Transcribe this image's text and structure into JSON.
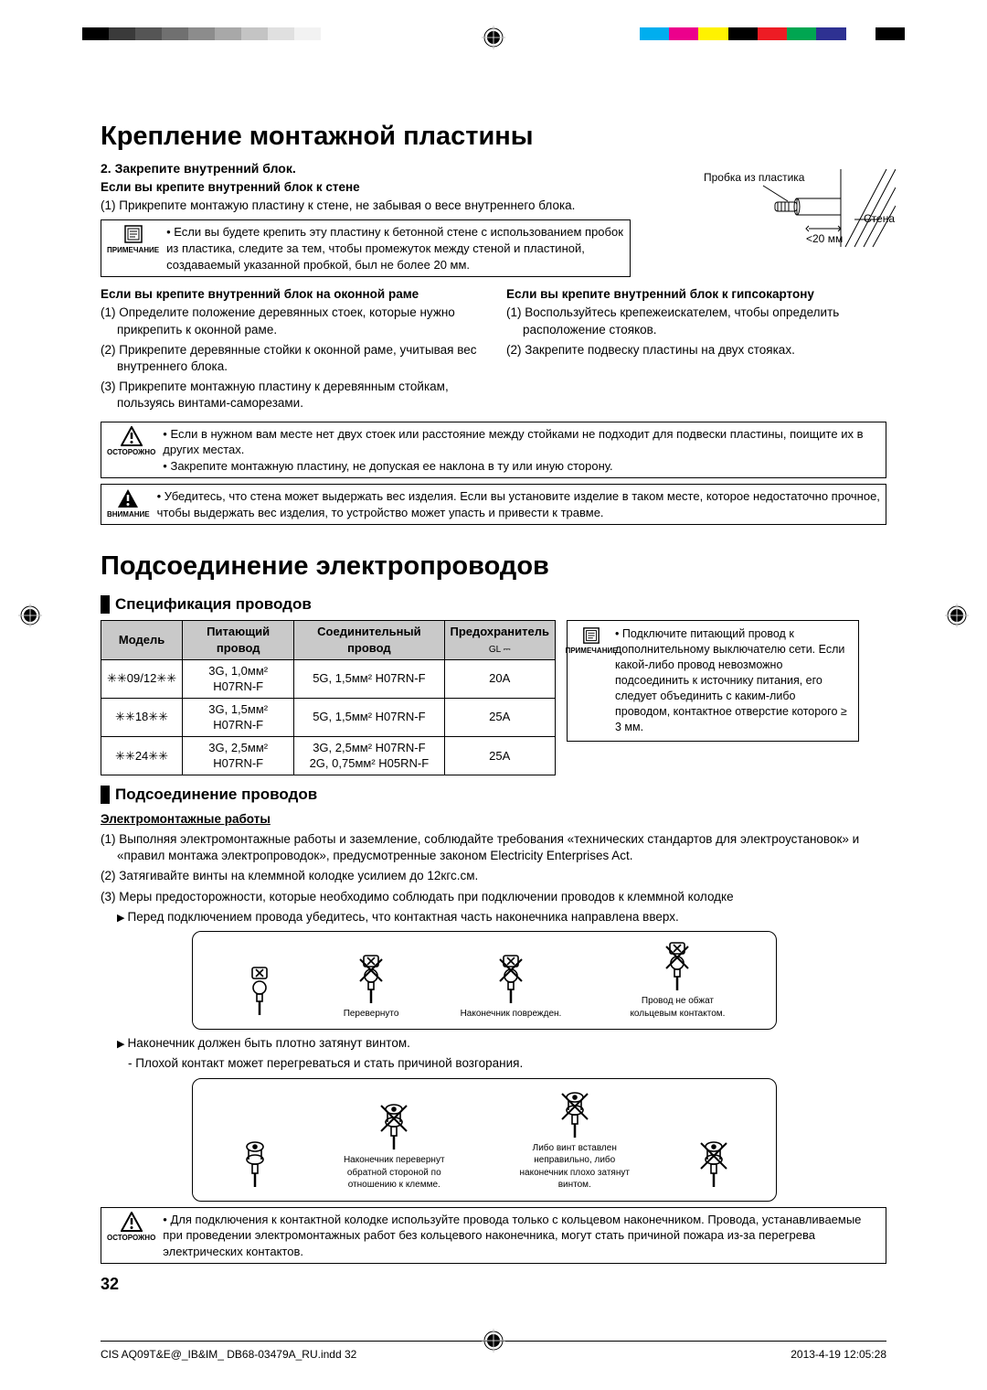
{
  "color_bars": {
    "left": [
      "#000000",
      "#3a3a3a",
      "#555555",
      "#707070",
      "#8c8c8c",
      "#a8a8a8",
      "#c4c4c4",
      "#e0e0e0",
      "#f2f2f2",
      "#ffffff"
    ],
    "right": [
      "#00aeef",
      "#ec008c",
      "#fff200",
      "#000000",
      "#ed1c24",
      "#00a651",
      "#2e3192",
      "#ffffff",
      "#000000"
    ]
  },
  "sec1": {
    "title": "Крепление монтажной пластины",
    "step": "2.  Закрепите внутренний блок.",
    "case_wall_h": "Если вы крепите внутренний блок к стене",
    "case_wall_1": "(1) Прикрепите монтажую пластину к стене, не забывая о весе внутреннего блока.",
    "note1_label": "ПРИМЕЧАНИЕ",
    "note1": "Если вы будете крепить эту пластину к бетонной стене с использованием пробок из пластика, следите за тем, чтобы промежуток между стеной и пластиной, создаваемый указанной пробкой, был не более 20 мм.",
    "case_frame_h": "Если вы крепите внутренний блок на оконной раме",
    "case_frame_1": "(1) Определите положение деревянных стоек, которые нужно прикрепить к оконной раме.",
    "case_frame_2": "(2) Прикрепите деревянные стойки к оконной раме, учитывая вес внутреннего блока.",
    "case_frame_3": "(3) Прикрепите монтажную пластину к деревянным стойкам, пользуясь винтами-саморезами.",
    "case_gyp_h": "Если вы крепите внутренний блок к гипсокартону",
    "case_gyp_1": "(1) Воспользуйтесь крепежеискателем, чтобы определить расположение стояков.",
    "case_gyp_2": "(2) Закрепите подвеску пластины на двух стояках.",
    "caution_label": "ОСТОРОЖНО",
    "caution_b1": "Если в нужном вам месте нет двух стоек или расстояние между стойками не подходит для подвески пластины, поищите их в других местах.",
    "caution_b2": "Закрепите монтажную пластину, не допуская ее наклона в ту или иную сторону.",
    "warn_label": "ВНИМАНИЕ",
    "warn_b1": "Убедитесь, что стена может выдержать вес изделия. Если вы установите изделие в таком месте, которое недостаточно прочное, чтобы выдержать вес изделия, то устройство может упасть и привести к травме.",
    "diagram": {
      "plug": "Пробка из пластика",
      "wall": "Стена",
      "gap": "<20 мм"
    }
  },
  "sec2": {
    "title": "Подсоединение электропроводов",
    "sub1": "Спецификация проводов",
    "table": {
      "headers": [
        "Модель",
        "Питающий провод",
        "Соединительный провод",
        "Предохранитель"
      ],
      "fuse_icon": "GL ⎓",
      "rows": [
        [
          "✳✳09/12✳✳",
          "3G, 1,0мм² H07RN-F",
          "5G, 1,5мм² H07RN-F",
          "20A"
        ],
        [
          "✳✳18✳✳",
          "3G, 1,5мм² H07RN-F",
          "5G, 1,5мм² H07RN-F",
          "25A"
        ],
        [
          "✳✳24✳✳",
          "3G, 2,5мм² H07RN-F",
          "3G, 2,5мм² H07RN-F\n2G, 0,75мм² H05RN-F",
          "25A"
        ]
      ]
    },
    "side_note_label": "ПРИМЕЧАНИЕ",
    "side_note": "Подключите питающий провод к дополнительному выключателю сети. Если какой-либо провод невозможно подсоединить к источнику питания, его следует объединить с каким-либо проводом, контактное отверстие которого ≥ 3 мм.",
    "sub2": "Подсоединение проводов",
    "work_h": "Электромонтажные работы",
    "work_1": "(1) Выполняя электромонтажные работы и заземление, соблюдайте требования «технических стандартов для электроустановок» и «правил монтажа электропроводок», предусмотренные законом Electricity Enterprises Act.",
    "work_2": "(2) Затягивайте винты на клеммной колодке усилием до 12кгс.см.",
    "work_3": "(3) Меры предосторожности, которые необходимо соблюдать при подключении проводов к клеммной колодке",
    "arrow1": "Перед подключением провода убедитесь, что контактная часть наконечника направлена вверх.",
    "fig1_labels": [
      "",
      "Перевернуто",
      "Наконечник поврежден.",
      "Провод не обжат кольцевым контактом."
    ],
    "arrow2": "Наконечник должен быть плотно затянут винтом.",
    "dash2": "- Плохой контакт может перегреваться и стать причиной возгорания.",
    "fig2_labels": [
      "",
      "Наконечник перевернут обратной стороной по отношению к клемме.",
      "Либо винт вставлен неправильно, либо наконечник плохо затянут винтом."
    ],
    "caution2_label": "ОСТОРОЖНО",
    "caution2": "Для подключения к контактной колодке используйте провода только с кольцевом наконечником. Провода, устанавливаемые при проведении электромонтажных работ без кольцевого наконечника, могут стать причиной пожара из-за перегрева электрических контактов."
  },
  "page_number": "32",
  "footer": {
    "left": "CIS AQ09T&E@_IB&IM_ DB68-03479A_RU.indd   32",
    "right": "2013-4-19   12:05:28"
  }
}
